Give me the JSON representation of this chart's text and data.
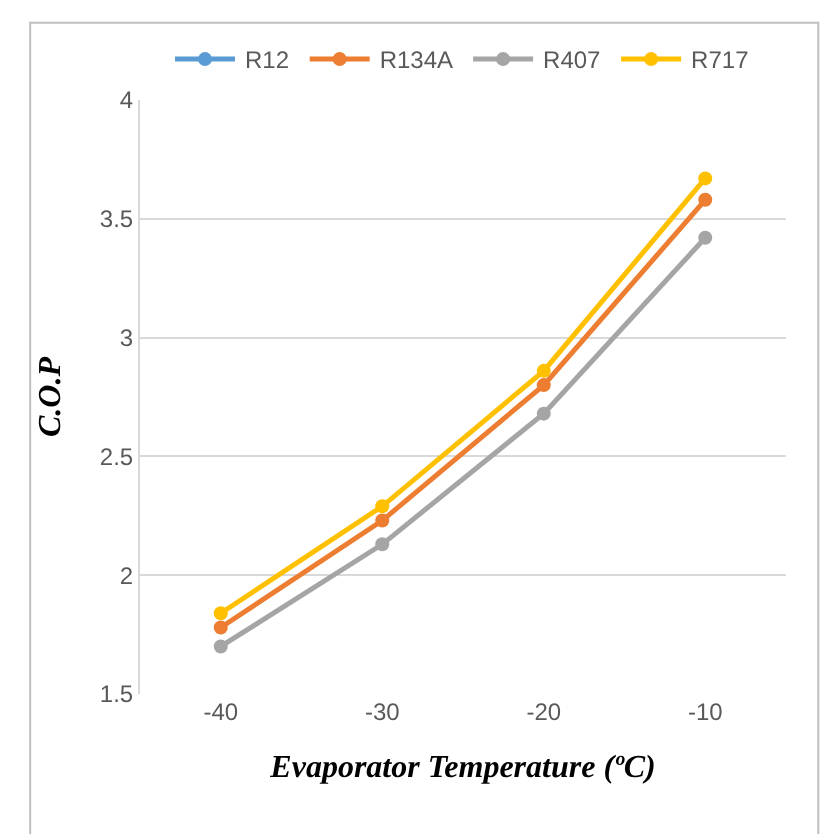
{
  "chart_data": {
    "type": "line",
    "xlabel": "Evaporator Temperature (ºC)",
    "ylabel": "C.O.P",
    "categories": [
      "-40",
      "-30",
      "-20",
      "-10"
    ],
    "series": [
      {
        "name": "R12",
        "color": "#5b9bd5",
        "values": [
          null,
          null,
          null,
          null
        ]
      },
      {
        "name": "R134A",
        "color": "#ed7d31",
        "values": [
          1.78,
          2.23,
          2.8,
          3.58
        ]
      },
      {
        "name": "R407",
        "color": "#a5a5a5",
        "values": [
          1.7,
          2.13,
          2.68,
          3.42
        ]
      },
      {
        "name": "R717",
        "color": "#ffc000",
        "values": [
          1.84,
          2.29,
          2.86,
          3.67
        ]
      }
    ],
    "ylim": [
      1.5,
      4
    ],
    "yticks": [
      1.5,
      2,
      2.5,
      3,
      3.5,
      4
    ],
    "grid": "y",
    "legend": "top",
    "marker": "circle",
    "line_style": "solid"
  }
}
